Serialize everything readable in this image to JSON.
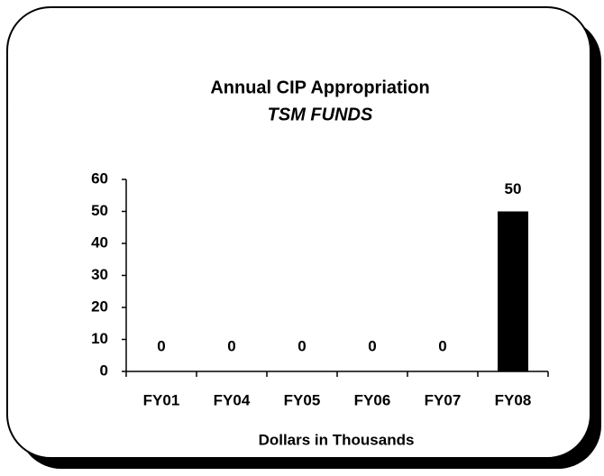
{
  "chart_data": {
    "type": "bar",
    "title": "Annual CIP Appropriation",
    "subtitle": "TSM FUNDS",
    "x_label": "Dollars in Thousands",
    "categories": [
      "FY01",
      "FY04",
      "FY05",
      "FY06",
      "FY07",
      "FY08"
    ],
    "values": [
      0,
      0,
      0,
      0,
      0,
      50
    ],
    "color": "#000000",
    "ylim": [
      0,
      60
    ],
    "yticks": [
      0,
      10,
      20,
      30,
      40,
      50,
      60
    ],
    "grid": false,
    "data_labels": true
  }
}
